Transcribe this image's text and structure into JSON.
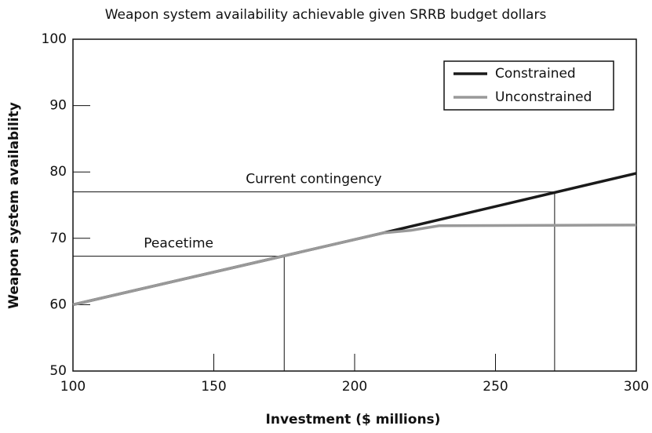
{
  "chart_data": {
    "type": "line",
    "title": "Weapon system availability achievable given SRRB budget dollars",
    "xlabel": "Investment ($ millions)",
    "ylabel": "Weapon system availability",
    "series": [
      {
        "name": "Constrained",
        "color": "#1a1a1a",
        "x": [
          100,
          210,
          300
        ],
        "values": [
          60,
          70.8,
          79.8
        ]
      },
      {
        "name": "Unconstrained",
        "color": "#999999",
        "x": [
          100,
          210,
          220,
          230,
          300
        ],
        "values": [
          60,
          70.8,
          71.2,
          71.9,
          72
        ]
      }
    ],
    "annotations": [
      {
        "text": "Current contingency",
        "x": 271,
        "y": 77
      },
      {
        "text": "Peacetime",
        "x": 175,
        "y": 67.3
      }
    ],
    "xlim": [
      100,
      300
    ],
    "xticks": [
      100,
      150,
      200,
      250,
      300
    ],
    "ylim": [
      50,
      100
    ],
    "yticks": [
      50,
      60,
      70,
      80,
      90,
      100
    ],
    "legend": "upper right",
    "grid": false
  }
}
